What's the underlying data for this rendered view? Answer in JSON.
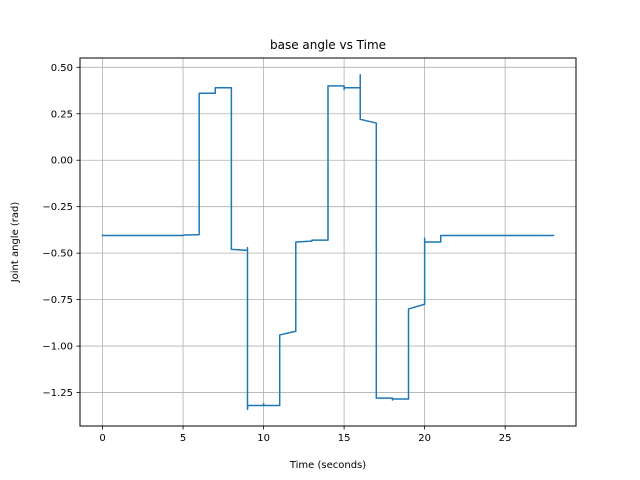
{
  "chart_data": {
    "type": "line",
    "title": "base angle vs Time",
    "xlabel": "Time (seconds)",
    "ylabel": "Joint angle (rad)",
    "xlim": [
      -1.4,
      29.4
    ],
    "ylim": [
      -1.43,
      0.55
    ],
    "x_ticks": [
      0,
      5,
      10,
      15,
      20,
      25
    ],
    "x_tick_labels": [
      "0",
      "5",
      "10",
      "15",
      "20",
      "25"
    ],
    "y_ticks": [
      0.5,
      0.25,
      0.0,
      -0.25,
      -0.5,
      -0.75,
      -1.0,
      -1.25
    ],
    "y_tick_labels": [
      "0.50",
      "0.25",
      "0.00",
      "−0.25",
      "−0.50",
      "−0.75",
      "−1.00",
      "−1.25"
    ],
    "grid": true,
    "legend": "none",
    "series": [
      {
        "color": "#1f77b4",
        "points": [
          [
            0.0,
            -0.405
          ],
          [
            5.0,
            -0.405
          ],
          [
            5.0,
            -0.403
          ],
          [
            6.0,
            -0.4
          ],
          [
            6.0,
            0.36
          ],
          [
            7.0,
            0.36
          ],
          [
            7.0,
            0.39
          ],
          [
            7.1,
            0.39
          ],
          [
            7.9,
            0.39
          ],
          [
            8.0,
            0.39
          ],
          [
            8.0,
            -0.48
          ],
          [
            9.0,
            -0.485
          ],
          [
            9.0,
            -0.47
          ],
          [
            9.0,
            -1.32
          ],
          [
            9.0,
            -1.34
          ],
          [
            9.02,
            -1.32
          ],
          [
            10.0,
            -1.32
          ],
          [
            10.0,
            -1.31
          ],
          [
            10.02,
            -1.32
          ],
          [
            11.0,
            -1.32
          ],
          [
            11.0,
            -0.94
          ],
          [
            12.0,
            -0.92
          ],
          [
            12.0,
            -0.44
          ],
          [
            13.0,
            -0.435
          ],
          [
            13.0,
            -0.43
          ],
          [
            14.0,
            -0.43
          ],
          [
            14.0,
            0.4
          ],
          [
            15.0,
            0.4
          ],
          [
            15.0,
            0.38
          ],
          [
            15.0,
            0.39
          ],
          [
            16.0,
            0.39
          ],
          [
            16.0,
            0.46
          ],
          [
            16.0,
            0.22
          ],
          [
            17.0,
            0.2
          ],
          [
            17.0,
            -1.28
          ],
          [
            18.0,
            -1.28
          ],
          [
            18.0,
            -1.29
          ],
          [
            18.02,
            -1.285
          ],
          [
            19.0,
            -1.285
          ],
          [
            19.0,
            -0.8
          ],
          [
            20.0,
            -0.775
          ],
          [
            20.0,
            -0.42
          ],
          [
            20.0,
            -0.44
          ],
          [
            21.0,
            -0.44
          ],
          [
            21.0,
            -0.405
          ],
          [
            28.0,
            -0.405
          ]
        ]
      }
    ]
  }
}
